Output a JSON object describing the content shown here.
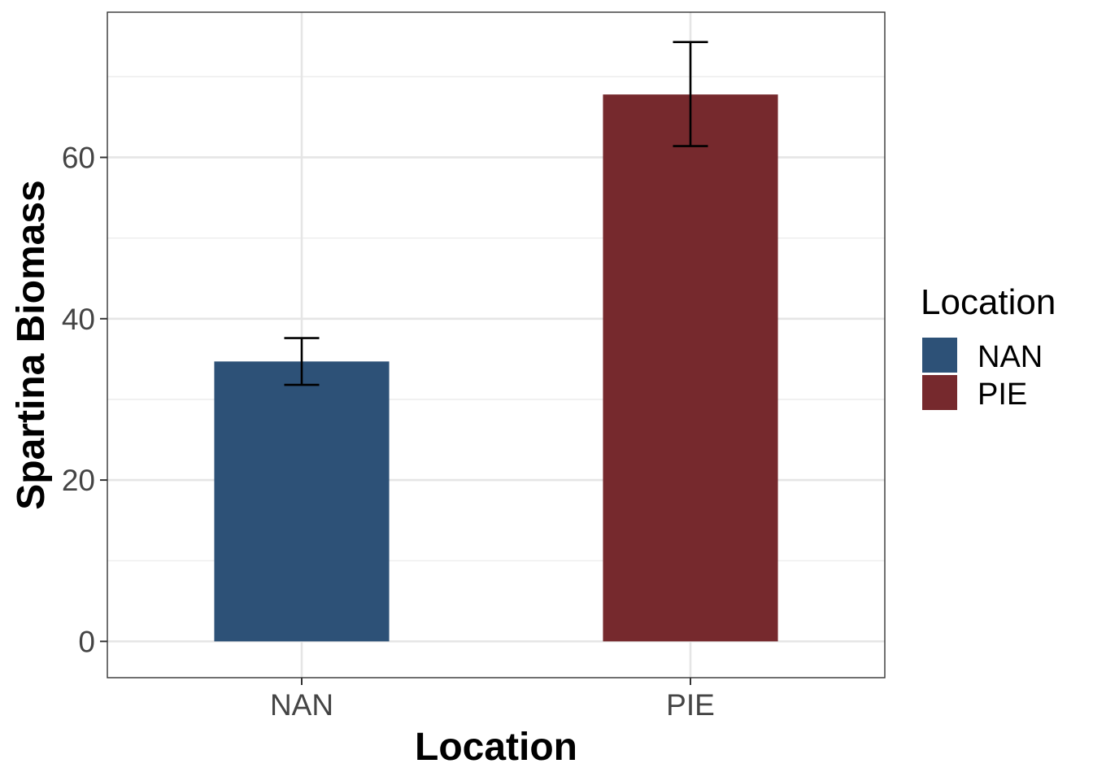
{
  "chart_data": {
    "type": "bar",
    "categories": [
      "NAN",
      "PIE"
    ],
    "values": [
      34.7,
      67.8
    ],
    "error": [
      {
        "low": 31.8,
        "high": 37.6
      },
      {
        "low": 61.4,
        "high": 74.3
      }
    ],
    "colors": [
      "#2d5177",
      "#76292d"
    ],
    "xlabel": "Location",
    "ylabel": "Spartina Biomass",
    "ylim": [
      -4.5,
      78
    ],
    "y_ticks": [
      0,
      20,
      40,
      60
    ],
    "grid": true,
    "legend": {
      "title": "Location",
      "position": "right",
      "entries": [
        "NAN",
        "PIE"
      ]
    }
  }
}
